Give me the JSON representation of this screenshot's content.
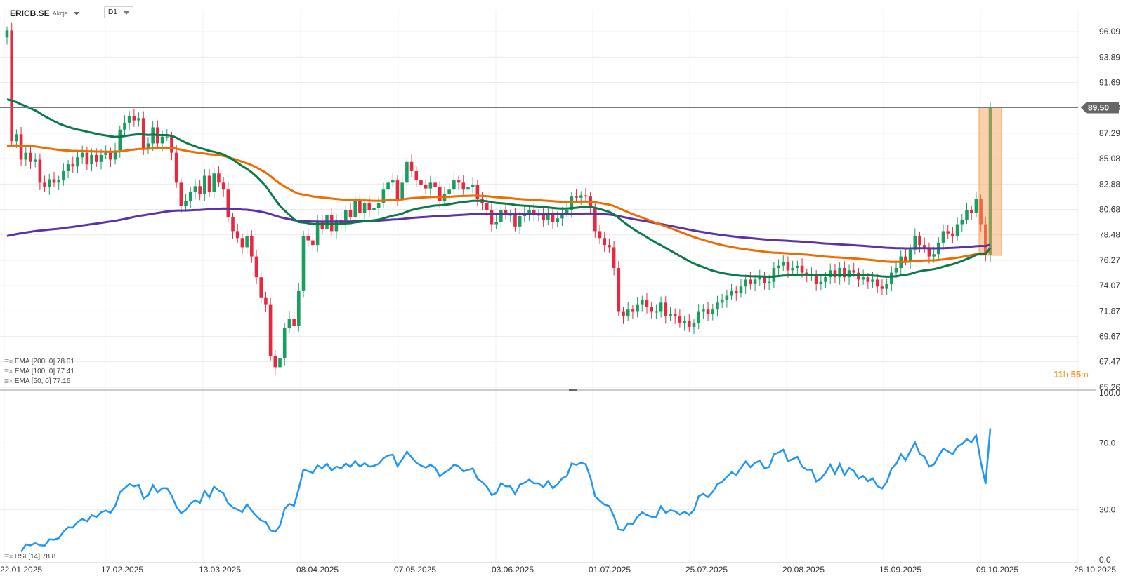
{
  "header": {
    "symbol": "ERICB.SE",
    "asset_type": "Akcje",
    "timeframe": "D1"
  },
  "countdown": {
    "hours": "11",
    "hours_unit": "h",
    "minutes": "55",
    "minutes_unit": "m"
  },
  "legend": {
    "ema200": "EMA [200, 0] 78.01",
    "ema100": "EMA [100, 0] 77.41",
    "ema50": "EMA [50, 0] 77.16",
    "rsi": "RSI [14] 78.8"
  },
  "colors": {
    "up": "#1a9e5f",
    "down": "#e8283f",
    "ema50": "#0b7a4b",
    "ema100": "#ef6c00",
    "ema200": "#5c33a6",
    "rsi": "#2196f3",
    "highlight": "#f7a35c",
    "price_tag": "#666666"
  },
  "chart_data": [
    {
      "type": "candlestick",
      "title": "ERICB.SE",
      "ylim": [
        65.26,
        97.5
      ],
      "y_ticks": [
        "96.09",
        "93.89",
        "91.69",
        "89.50",
        "87.29",
        "85.08",
        "82.88",
        "80.68",
        "78.48",
        "76.27",
        "74.07",
        "71.87",
        "69.67",
        "67.47",
        "65.26"
      ],
      "x_ticks": [
        "22.01.2025",
        "17.02.2025",
        "13.03.2025",
        "08.04.2025",
        "07.05.2025",
        "03.06.2025",
        "01.07.2025",
        "25.07.2025",
        "20.08.2025",
        "15.09.2025",
        "09.10.2025",
        "28.10.2025"
      ],
      "last_price": "89.50",
      "highlight_range": [
        76.7,
        89.5
      ],
      "candle_closes": [
        96.2,
        86.6,
        87.2,
        85.0,
        85.6,
        84.8,
        85.0,
        83.0,
        82.6,
        83.3,
        83.0,
        83.2,
        84.0,
        84.6,
        84.4,
        85.2,
        85.6,
        84.6,
        85.4,
        84.8,
        85.4,
        85.6,
        85.0,
        85.8,
        87.6,
        88.2,
        88.8,
        88.4,
        88.6,
        86.0,
        86.4,
        87.8,
        86.4,
        87.0,
        87.0,
        85.6,
        83.0,
        81.0,
        81.4,
        82.2,
        82.7,
        82.0,
        83.6,
        82.2,
        83.8,
        83.0,
        82.4,
        80.0,
        78.8,
        78.2,
        77.4,
        78.4,
        76.6,
        74.8,
        73.0,
        72.4,
        68.0,
        67.0,
        67.8,
        70.4,
        71.2,
        70.6,
        73.6,
        78.4,
        78.0,
        77.6,
        79.6,
        79.0,
        80.2,
        78.8,
        79.8,
        79.4,
        80.6,
        80.0,
        81.4,
        80.4,
        81.2,
        80.6,
        80.8,
        81.2,
        82.4,
        83.0,
        83.2,
        81.6,
        83.0,
        84.8,
        84.0,
        83.2,
        82.8,
        82.5,
        83.0,
        82.6,
        81.4,
        82.0,
        82.4,
        83.2,
        83.0,
        82.4,
        82.6,
        82.8,
        81.6,
        81.2,
        80.6,
        79.4,
        79.6,
        80.6,
        80.2,
        80.2,
        79.2,
        80.1,
        80.3,
        80.6,
        80.2,
        80.2,
        79.8,
        80.3,
        79.6,
        79.9,
        80.4,
        80.6,
        81.8,
        81.7,
        81.9,
        81.8,
        80.8,
        78.8,
        78.2,
        77.6,
        77.4,
        75.6,
        71.8,
        71.4,
        72.0,
        71.8,
        72.4,
        72.8,
        72.2,
        71.8,
        71.8,
        72.6,
        71.4,
        71.6,
        71.4,
        70.8,
        71.0,
        70.5,
        70.8,
        71.8,
        72.0,
        71.6,
        72.0,
        72.6,
        72.8,
        73.2,
        73.6,
        73.4,
        74.0,
        74.6,
        74.2,
        74.6,
        74.8,
        74.3,
        74.4,
        75.6,
        75.8,
        76.1,
        75.4,
        75.6,
        75.8,
        75.2,
        75.0,
        75.0,
        74.2,
        74.4,
        74.8,
        75.4,
        74.8,
        75.6,
        74.8,
        75.4,
        75.2,
        74.6,
        74.8,
        74.4,
        74.6,
        74.0,
        73.8,
        74.2,
        75.2,
        75.6,
        76.6,
        76.2,
        77.2,
        78.4,
        77.6,
        77.4,
        76.6,
        76.8,
        77.8,
        78.8,
        78.6,
        78.4,
        79.4,
        79.8,
        80.6,
        80.4,
        81.6,
        79.4,
        76.7,
        89.5
      ],
      "ema200_end": 78.01,
      "ema100_end": 77.41,
      "ema50_end": 77.16
    },
    {
      "type": "line",
      "title": "RSI [14]",
      "ylim": [
        0,
        100
      ],
      "y_ticks": [
        "100.0",
        "70.0",
        "30.0",
        "0.0"
      ],
      "last_value": 78.8
    }
  ]
}
